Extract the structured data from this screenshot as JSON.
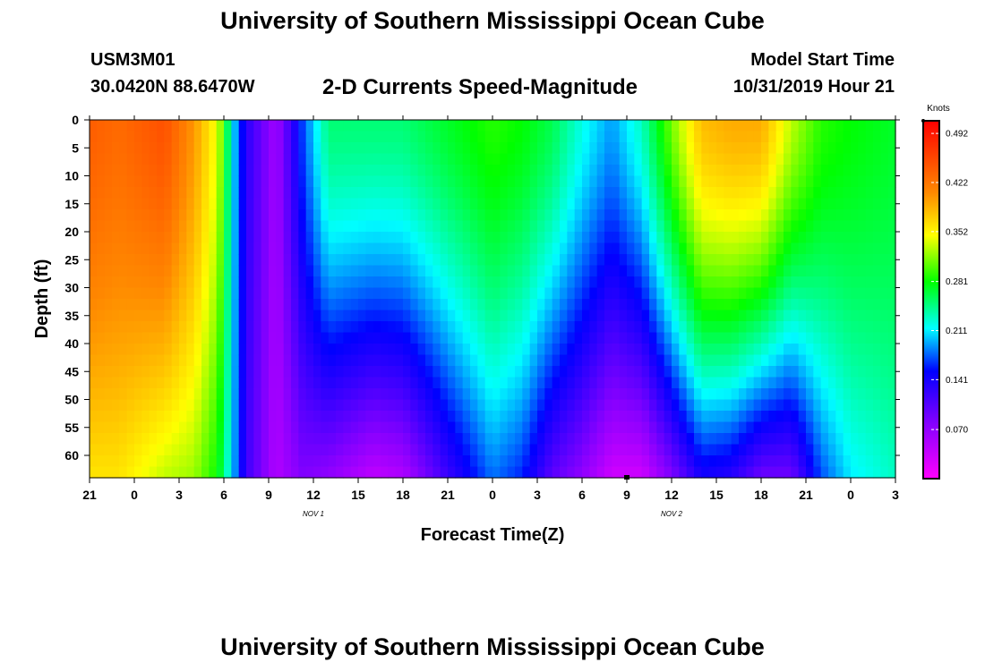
{
  "header": {
    "title": "University of Southern Mississippi Ocean Cube",
    "station_id": "USM3M01",
    "station_location": "30.0420N 88.6470W",
    "subtitle": "2-D Currents Speed-Magnitude",
    "start_label": "Model Start Time",
    "start_value": "10/31/2019 Hour 21"
  },
  "footer": {
    "title": "University of Southern Mississippi Ocean Cube"
  },
  "chart_data": {
    "type": "heatmap",
    "title": "2-D Currents Speed-Magnitude",
    "xlabel": "Forecast Time(Z)",
    "ylabel": "Depth (ft)",
    "x_unit": "forecast hours since model start",
    "xlim": [
      0,
      54
    ],
    "ylim": [
      0,
      64
    ],
    "x_ticks": [
      {
        "h": 0,
        "label": "21"
      },
      {
        "h": 3,
        "label": "0"
      },
      {
        "h": 6,
        "label": "3"
      },
      {
        "h": 9,
        "label": "6"
      },
      {
        "h": 12,
        "label": "9"
      },
      {
        "h": 15,
        "label": "12"
      },
      {
        "h": 18,
        "label": "15"
      },
      {
        "h": 21,
        "label": "18"
      },
      {
        "h": 24,
        "label": "21"
      },
      {
        "h": 27,
        "label": "0"
      },
      {
        "h": 30,
        "label": "3"
      },
      {
        "h": 33,
        "label": "6"
      },
      {
        "h": 36,
        "label": "9"
      },
      {
        "h": 39,
        "label": "12"
      },
      {
        "h": 42,
        "label": "15"
      },
      {
        "h": 45,
        "label": "18"
      },
      {
        "h": 48,
        "label": "21"
      },
      {
        "h": 51,
        "label": "0"
      },
      {
        "h": 54,
        "label": "3"
      }
    ],
    "y_ticks": [
      0,
      5,
      10,
      15,
      20,
      25,
      30,
      35,
      40,
      45,
      50,
      55,
      60
    ],
    "day_labels": [
      {
        "h": 15,
        "label": "NOV 1"
      },
      {
        "h": 39,
        "label": "NOV 2"
      }
    ],
    "colorbar": {
      "title": "Knots",
      "min": 0.0,
      "max": 0.51,
      "ticks": [
        0.492,
        0.422,
        0.352,
        0.281,
        0.211,
        0.141,
        0.07
      ]
    },
    "marker_hour": 36,
    "speed_profile": [
      {
        "h": 0,
        "surface": 0.44,
        "bottom": 0.36
      },
      {
        "h": 2,
        "surface": 0.43,
        "bottom": 0.36
      },
      {
        "h": 5,
        "surface": 0.45,
        "bottom": 0.33
      },
      {
        "h": 7,
        "surface": 0.4,
        "bottom": 0.32
      },
      {
        "h": 8.6,
        "surface": 0.34,
        "bottom": 0.28
      },
      {
        "h": 9.6,
        "surface": 0.21,
        "bottom": 0.2
      },
      {
        "h": 10.5,
        "surface": 0.13,
        "bottom": 0.12
      },
      {
        "h": 12.5,
        "surface": 0.06,
        "bottom": 0.05
      },
      {
        "h": 14.3,
        "surface": 0.17,
        "bottom": 0.08
      },
      {
        "h": 16,
        "surface": 0.25,
        "bottom": 0.07
      },
      {
        "h": 19,
        "surface": 0.25,
        "bottom": 0.04
      },
      {
        "h": 21,
        "surface": 0.25,
        "bottom": 0.05
      },
      {
        "h": 24,
        "surface": 0.27,
        "bottom": 0.12
      },
      {
        "h": 27,
        "surface": 0.29,
        "bottom": 0.18
      },
      {
        "h": 29,
        "surface": 0.28,
        "bottom": 0.16
      },
      {
        "h": 31,
        "surface": 0.26,
        "bottom": 0.1
      },
      {
        "h": 33,
        "surface": 0.22,
        "bottom": 0.07
      },
      {
        "h": 35,
        "surface": 0.19,
        "bottom": 0.03
      },
      {
        "h": 37,
        "surface": 0.23,
        "bottom": 0.03
      },
      {
        "h": 39,
        "surface": 0.31,
        "bottom": 0.08
      },
      {
        "h": 41,
        "surface": 0.38,
        "bottom": 0.14
      },
      {
        "h": 43,
        "surface": 0.39,
        "bottom": 0.13
      },
      {
        "h": 45,
        "surface": 0.39,
        "bottom": 0.09
      },
      {
        "h": 47,
        "surface": 0.33,
        "bottom": 0.09
      },
      {
        "h": 49,
        "surface": 0.29,
        "bottom": 0.17
      },
      {
        "h": 51,
        "surface": 0.28,
        "bottom": 0.21
      },
      {
        "h": 54,
        "surface": 0.27,
        "bottom": 0.23
      }
    ]
  }
}
